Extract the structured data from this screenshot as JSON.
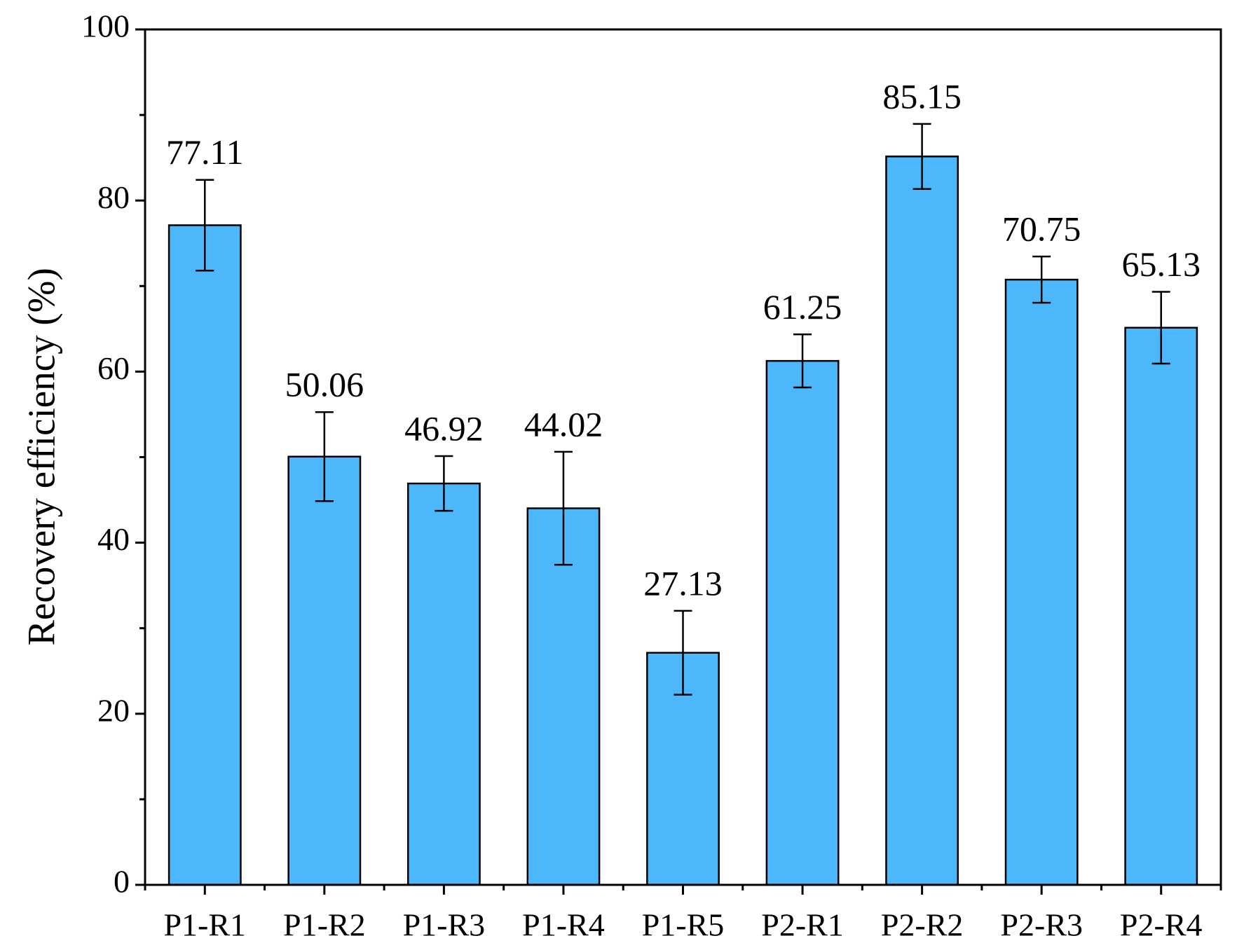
{
  "chart_data": {
    "type": "bar",
    "y_label": "Recovery efficiency (%)",
    "categories": [
      "P1-R1",
      "P1-R2",
      "P1-R3",
      "P1-R4",
      "P1-R5",
      "P2-R1",
      "P2-R2",
      "P2-R3",
      "P2-R4"
    ],
    "values": [
      77.11,
      50.06,
      46.92,
      44.02,
      27.13,
      61.25,
      85.15,
      70.75,
      65.13
    ],
    "errors": [
      5.3,
      5.2,
      3.2,
      6.6,
      4.9,
      3.1,
      3.8,
      2.7,
      4.2
    ],
    "color": "#4cb8fb",
    "ylim": [
      0,
      100
    ],
    "yticks": [
      0,
      20,
      40,
      60,
      80,
      100
    ],
    "yminorticks": [
      10,
      30,
      50,
      70,
      90
    ]
  }
}
